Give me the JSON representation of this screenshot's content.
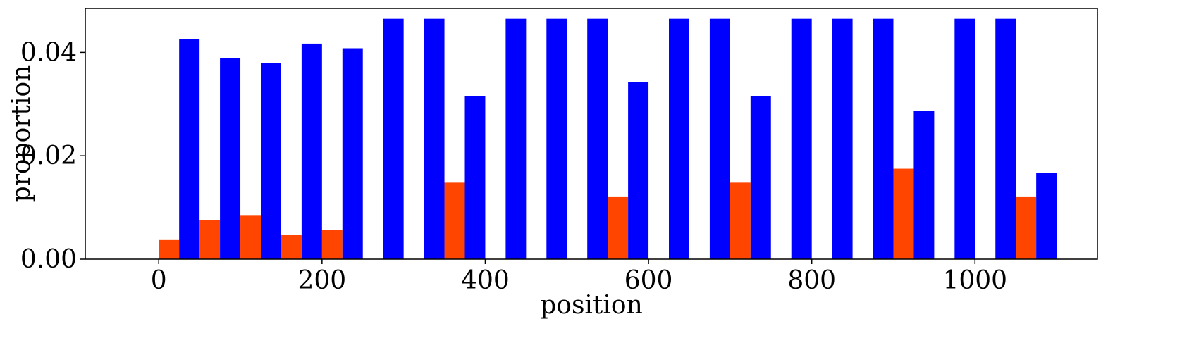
{
  "chart_data": {
    "type": "bar",
    "title": "",
    "xlabel": "position",
    "ylabel": "proportion",
    "xlim": [
      -90,
      1150
    ],
    "ylim": [
      0,
      0.0485
    ],
    "x_ticks": [
      0,
      200,
      400,
      600,
      800,
      1000
    ],
    "y_ticks": [
      0.0,
      0.02,
      0.04
    ],
    "x_tick_labels": [
      "0",
      "200",
      "400",
      "600",
      "800",
      "1000"
    ],
    "y_tick_labels": [
      "0.00",
      "0.02",
      "0.04"
    ],
    "bar_width": 25,
    "grid": false,
    "legend": null,
    "series": [
      {
        "color": "#ff4500",
        "x": [
          0,
          50,
          100,
          150,
          200,
          250,
          300,
          350,
          400,
          450,
          500,
          550,
          600,
          650,
          700,
          750,
          800,
          850,
          900,
          950,
          1000,
          1050
        ],
        "values": [
          0.0037,
          0.0075,
          0.0084,
          0.0047,
          0.0056,
          0,
          0,
          0.0148,
          0,
          0,
          0,
          0.012,
          0,
          0,
          0.0148,
          0,
          0,
          0,
          0.0175,
          0,
          0,
          0.012
        ]
      },
      {
        "color": "#0000ff",
        "x": [
          25,
          75,
          125,
          175,
          225,
          275,
          325,
          375,
          425,
          475,
          525,
          575,
          625,
          675,
          725,
          775,
          825,
          875,
          925,
          975,
          1025,
          1075
        ],
        "values": [
          0.0426,
          0.0389,
          0.038,
          0.0417,
          0.0408,
          0.0465,
          0.0465,
          0.0315,
          0.0465,
          0.0465,
          0.0465,
          0.0342,
          0.0465,
          0.0465,
          0.0315,
          0.0465,
          0.0465,
          0.0465,
          0.0287,
          0.0465,
          0.0465,
          0.0167
        ]
      }
    ]
  }
}
